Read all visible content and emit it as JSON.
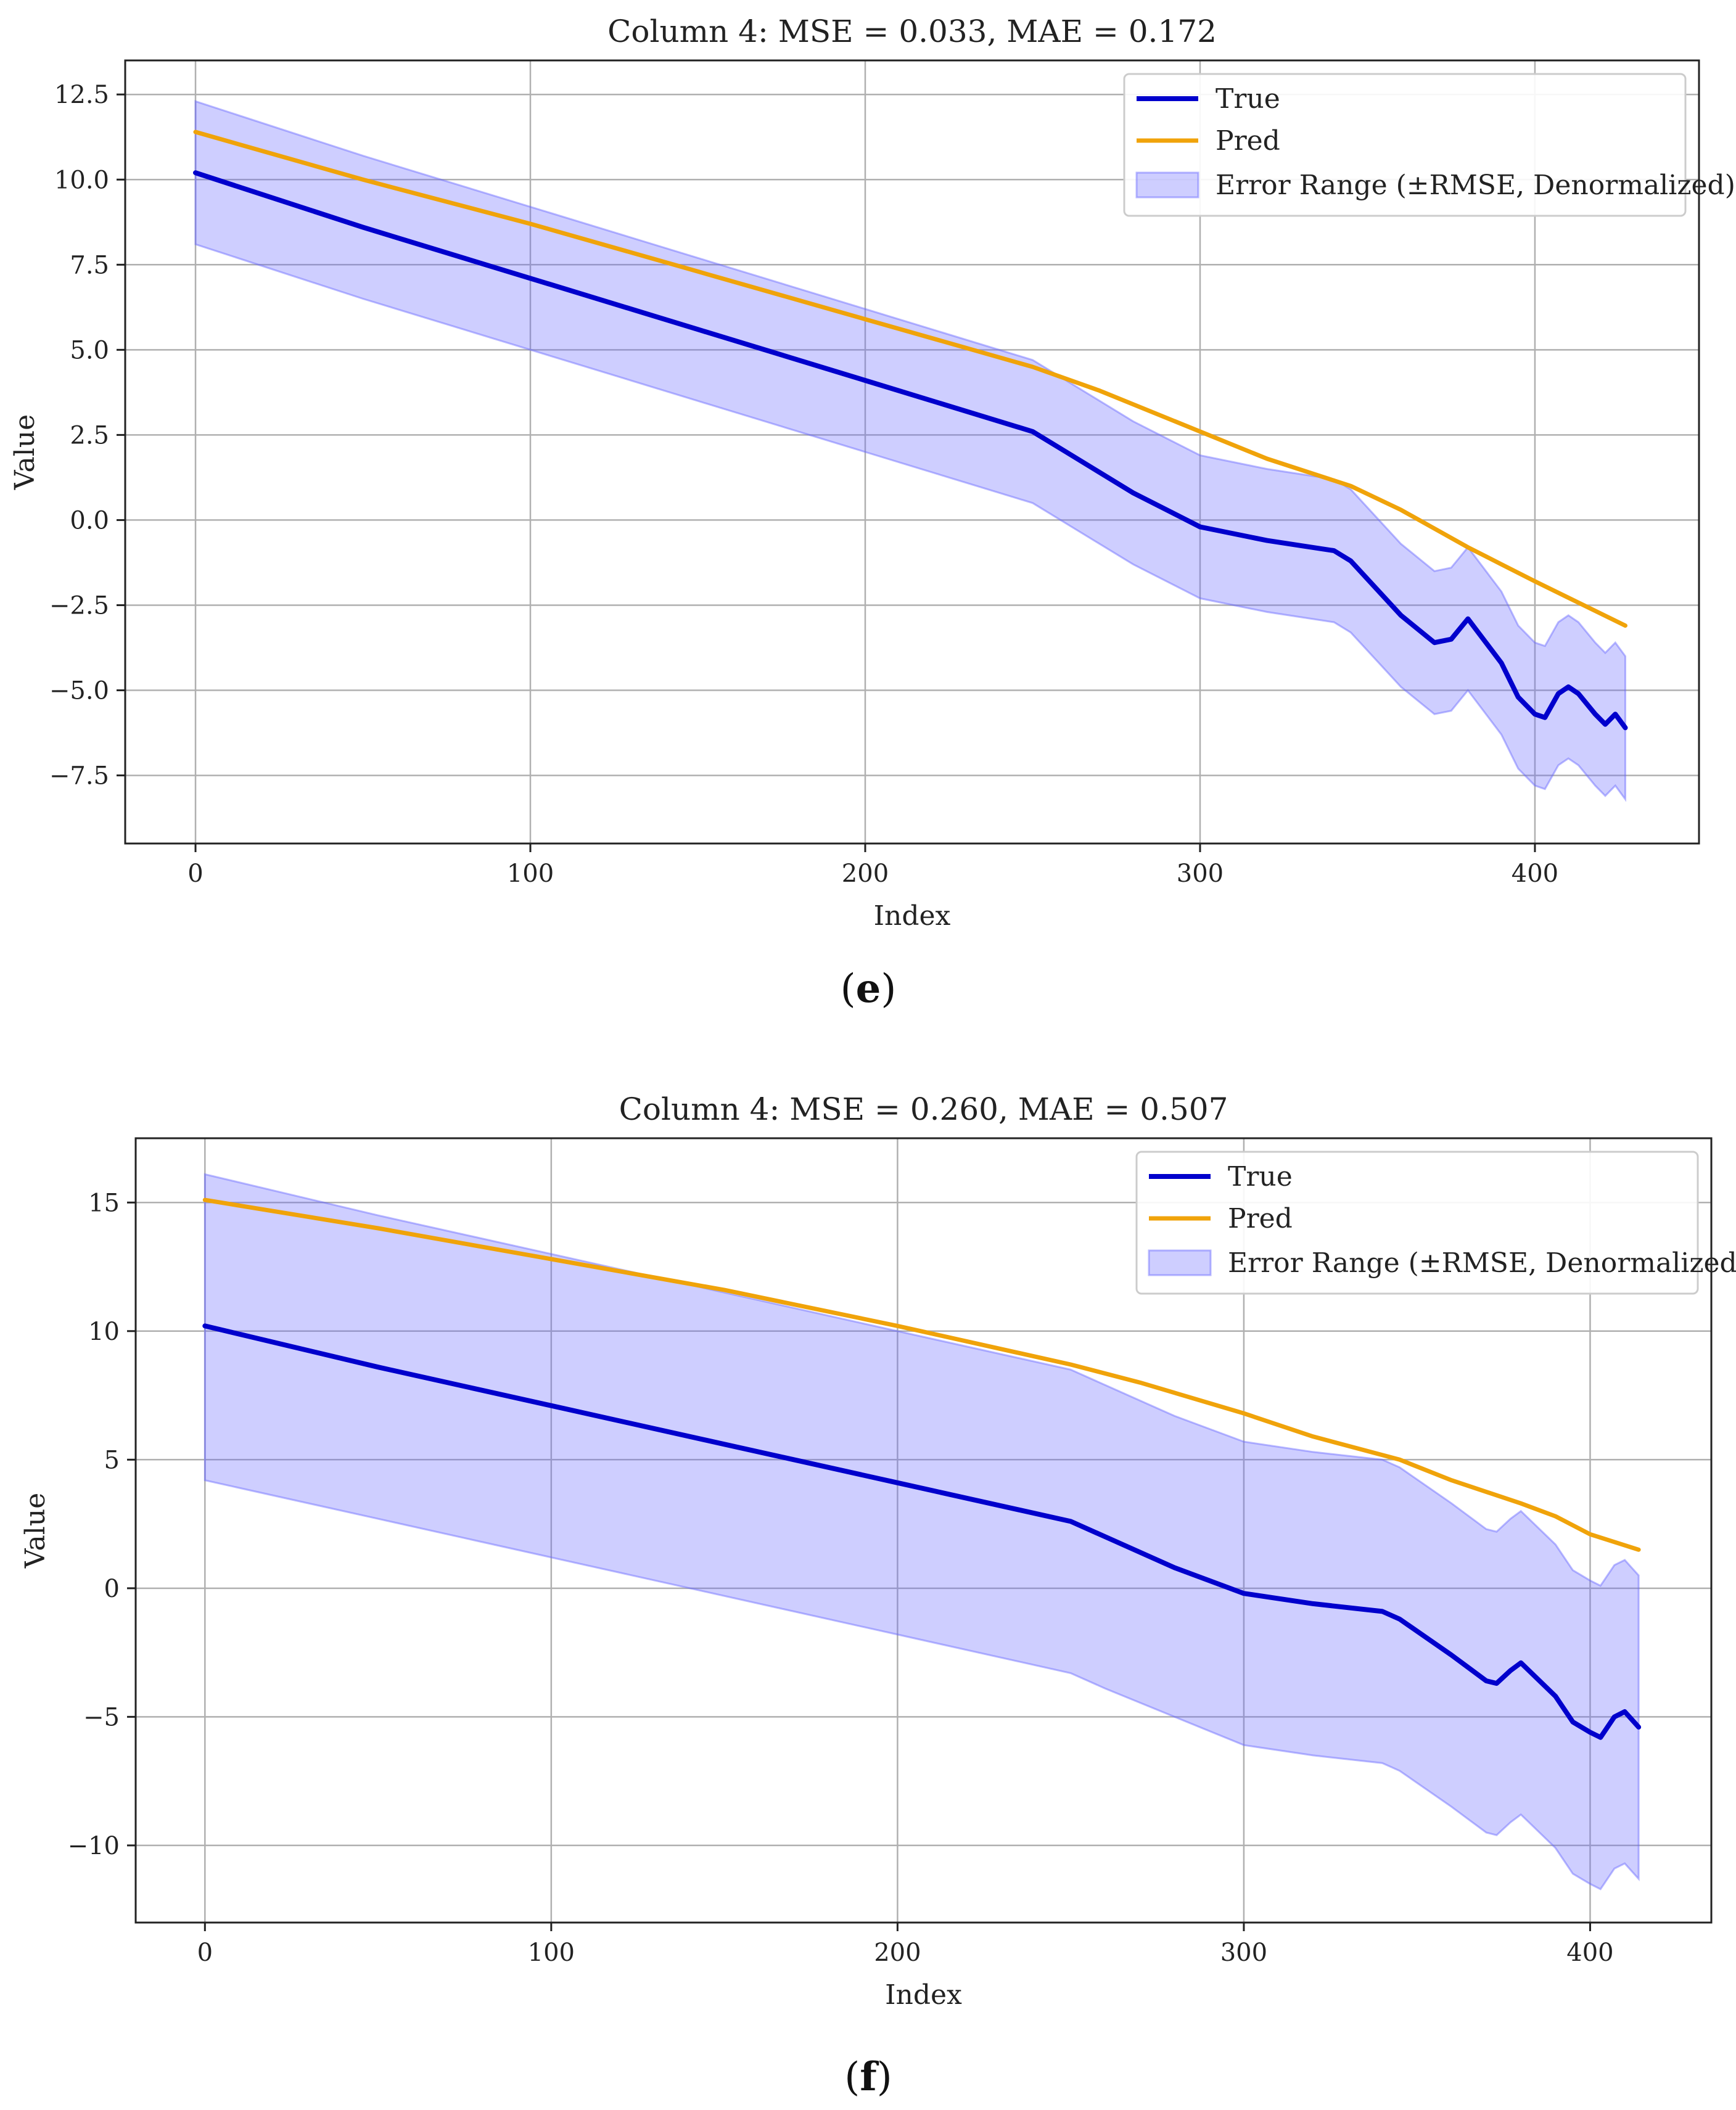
{
  "chart_data": [
    {
      "type": "line",
      "panel_label": "e",
      "title": "Column 4: MSE = 0.033, MAE = 0.172",
      "xlabel": "Index",
      "ylabel": "Value",
      "xlim": [
        -21,
        449
      ],
      "ylim": [
        -9.5,
        13.5
      ],
      "xticks": [
        0,
        100,
        200,
        300,
        400
      ],
      "yticks": [
        -7.5,
        -5.0,
        -2.5,
        0.0,
        2.5,
        5.0,
        7.5,
        10.0,
        12.5
      ],
      "ytick_labels": [
        "−7.5",
        "−5.0",
        "−2.5",
        "0.0",
        "2.5",
        "5.0",
        "7.5",
        "10.0",
        "12.5"
      ],
      "grid": true,
      "legend_position": "top-right",
      "colors": {
        "true": "#0000cc",
        "pred": "#f0a30a",
        "band": "#6666ff"
      },
      "series": [
        {
          "name": "True",
          "x": [
            0,
            50,
            100,
            150,
            200,
            250,
            260,
            280,
            300,
            320,
            340,
            345,
            360,
            370,
            375,
            380,
            390,
            395,
            400,
            403,
            407,
            410,
            413,
            418,
            421,
            424,
            427
          ],
          "y": [
            10.2,
            8.6,
            7.1,
            5.6,
            4.1,
            2.6,
            2.0,
            0.8,
            -0.2,
            -0.6,
            -0.9,
            -1.2,
            -2.8,
            -3.6,
            -3.5,
            -2.9,
            -4.2,
            -5.2,
            -5.7,
            -5.8,
            -5.1,
            -4.9,
            -5.1,
            -5.7,
            -6.0,
            -5.7,
            -6.1
          ]
        },
        {
          "name": "Pred",
          "x": [
            0,
            50,
            100,
            150,
            200,
            250,
            270,
            300,
            320,
            345,
            360,
            380,
            390,
            400,
            427
          ],
          "y": [
            11.4,
            10.0,
            8.7,
            7.3,
            5.9,
            4.5,
            3.8,
            2.6,
            1.8,
            1.0,
            0.3,
            -0.8,
            -1.3,
            -1.8,
            -3.1
          ]
        },
        {
          "name": "Error Range (±RMSE, Denormalized)",
          "x": [
            0,
            50,
            100,
            150,
            200,
            250,
            260,
            280,
            300,
            320,
            340,
            345,
            360,
            370,
            375,
            380,
            390,
            395,
            400,
            403,
            407,
            410,
            413,
            418,
            421,
            424,
            427
          ],
          "upper": [
            12.3,
            10.7,
            9.2,
            7.7,
            6.2,
            4.7,
            4.1,
            2.9,
            1.9,
            1.5,
            1.2,
            0.9,
            -0.7,
            -1.5,
            -1.4,
            -0.8,
            -2.1,
            -3.1,
            -3.6,
            -3.7,
            -3.0,
            -2.8,
            -3.0,
            -3.6,
            -3.9,
            -3.6,
            -4.0
          ],
          "lower": [
            8.1,
            6.5,
            5.0,
            3.5,
            2.0,
            0.5,
            -0.1,
            -1.3,
            -2.3,
            -2.7,
            -3.0,
            -3.3,
            -4.9,
            -5.7,
            -5.6,
            -5.0,
            -6.3,
            -7.3,
            -7.8,
            -7.9,
            -7.2,
            -7.0,
            -7.2,
            -7.8,
            -8.1,
            -7.8,
            -8.2
          ]
        }
      ]
    },
    {
      "type": "line",
      "panel_label": "f",
      "title": "Column 4: MSE = 0.260, MAE = 0.507",
      "xlabel": "Index",
      "ylabel": "Value",
      "xlim": [
        -20,
        435
      ],
      "ylim": [
        -13,
        17.5
      ],
      "xticks": [
        0,
        100,
        200,
        300,
        400
      ],
      "yticks": [
        -10,
        -5,
        0,
        5,
        10,
        15
      ],
      "ytick_labels": [
        "−10",
        "−5",
        "0",
        "5",
        "10",
        "15"
      ],
      "grid": true,
      "legend_position": "top-right",
      "colors": {
        "true": "#0000cc",
        "pred": "#f0a30a",
        "band": "#6666ff"
      },
      "series": [
        {
          "name": "True",
          "x": [
            0,
            50,
            100,
            150,
            200,
            250,
            260,
            280,
            300,
            320,
            340,
            345,
            360,
            365,
            370,
            373,
            377,
            380,
            390,
            395,
            400,
            403,
            407,
            410,
            414
          ],
          "y": [
            10.2,
            8.6,
            7.1,
            5.6,
            4.1,
            2.6,
            2.0,
            0.8,
            -0.2,
            -0.6,
            -0.9,
            -1.2,
            -2.6,
            -3.1,
            -3.6,
            -3.7,
            -3.2,
            -2.9,
            -4.2,
            -5.2,
            -5.6,
            -5.8,
            -5.0,
            -4.8,
            -5.4
          ]
        },
        {
          "name": "Pred",
          "x": [
            0,
            50,
            100,
            150,
            200,
            250,
            270,
            300,
            320,
            345,
            360,
            380,
            390,
            400,
            414
          ],
          "y": [
            15.1,
            14.0,
            12.8,
            11.6,
            10.2,
            8.7,
            8.0,
            6.8,
            5.9,
            5.0,
            4.2,
            3.3,
            2.8,
            2.1,
            1.5
          ]
        },
        {
          "name": "Error Range (±RMSE, Denormalized)",
          "x": [
            0,
            50,
            100,
            150,
            200,
            250,
            260,
            280,
            300,
            320,
            340,
            345,
            360,
            365,
            370,
            373,
            377,
            380,
            390,
            395,
            400,
            403,
            407,
            410,
            414
          ],
          "upper": [
            16.1,
            14.5,
            13.0,
            11.5,
            10.0,
            8.5,
            7.9,
            6.7,
            5.7,
            5.3,
            5.0,
            4.7,
            3.3,
            2.8,
            2.3,
            2.2,
            2.7,
            3.0,
            1.7,
            0.7,
            0.3,
            0.1,
            0.9,
            1.1,
            0.5
          ],
          "lower": [
            4.2,
            2.7,
            1.2,
            -0.3,
            -1.8,
            -3.3,
            -3.9,
            -5.0,
            -6.1,
            -6.5,
            -6.8,
            -7.1,
            -8.5,
            -9.0,
            -9.5,
            -9.6,
            -9.1,
            -8.8,
            -10.1,
            -11.1,
            -11.5,
            -11.7,
            -10.9,
            -10.7,
            -11.3
          ]
        }
      ]
    }
  ]
}
